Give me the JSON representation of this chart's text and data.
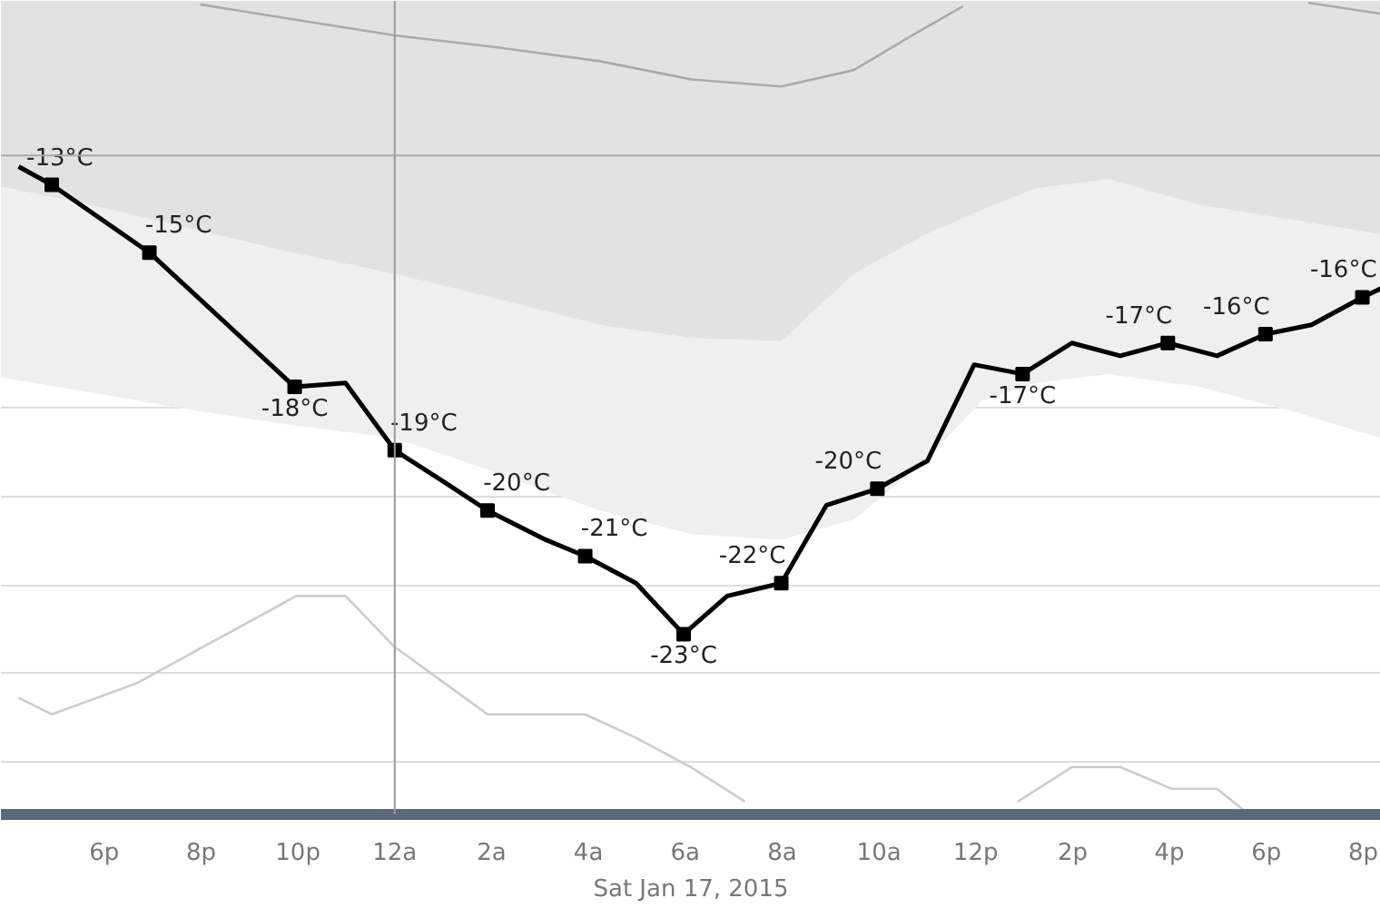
{
  "chart_data": {
    "type": "line",
    "xlabel": "Sat Jan 17, 2015",
    "xlim": [
      "2015-01-16T15:52",
      "2015-01-17T20:22"
    ],
    "ylim": [
      -27.28,
      -8.92
    ],
    "xticks": [
      {
        "value": "2015-01-16T18:00",
        "label": "6p"
      },
      {
        "value": "2015-01-16T20:00",
        "label": "8p"
      },
      {
        "value": "2015-01-16T22:00",
        "label": "10p"
      },
      {
        "value": "2015-01-17T00:00",
        "label": "12a"
      },
      {
        "value": "2015-01-17T02:00",
        "label": "2a"
      },
      {
        "value": "2015-01-17T04:00",
        "label": "4a"
      },
      {
        "value": "2015-01-17T06:00",
        "label": "6a"
      },
      {
        "value": "2015-01-17T08:00",
        "label": "8a"
      },
      {
        "value": "2015-01-17T10:00",
        "label": "10a"
      },
      {
        "value": "2015-01-17T12:00",
        "label": "12p"
      },
      {
        "value": "2015-01-17T14:00",
        "label": "2p"
      },
      {
        "value": "2015-01-17T16:00",
        "label": "4p"
      },
      {
        "value": "2015-01-17T18:00",
        "label": "6p"
      },
      {
        "value": "2015-01-17T20:00",
        "label": "8p"
      }
    ],
    "yticks": [
      {
        "value": -10.1,
        "label": null
      },
      {
        "value": -12.1,
        "label": null
      },
      {
        "value": -14.1,
        "label": null
      },
      {
        "value": -16.1,
        "label": null
      },
      {
        "value": -18.1,
        "label": null
      },
      {
        "value": -20.1,
        "label": null
      },
      {
        "value": -22.1,
        "label": null
      },
      {
        "value": -24.1,
        "label": null
      },
      {
        "value": -26.1,
        "label": null
      }
    ],
    "tick_labels": "x",
    "grid": "y",
    "ref_lines": [
      {
        "axis": "x",
        "value": "2015-01-17T00:00",
        "color": "#999999"
      },
      {
        "axis": "y",
        "value": -12.41,
        "color": "#aaaaaa"
      }
    ],
    "series": [
      {
        "type": "area",
        "color": "#efefef",
        "x": [
          "2015-01-16T15:52",
          "2015-01-16T17:44",
          "2015-01-16T19:37",
          "2015-01-16T21:52",
          "2015-01-17T00:00",
          "2015-01-17T01:59",
          "2015-01-17T04:14",
          "2015-01-17T06:07",
          "2015-01-17T07:59",
          "2015-01-17T09:29",
          "2015-01-17T10:59",
          "2015-01-17T12:07",
          "2015-01-17T13:14",
          "2015-01-17T14:44",
          "2015-01-17T16:37",
          "2015-01-17T18:29",
          "2015-01-17T20:22"
        ],
        "values": [
          -17.42,
          -17.75,
          -18.12,
          -18.49,
          -18.78,
          -19.52,
          -20.42,
          -20.95,
          -21.08,
          -20.62,
          -19.27,
          -17.95,
          -17.54,
          -17.34,
          -17.63,
          -18.16,
          -18.78
        ]
      },
      {
        "type": "area",
        "color": "#e2e2e2",
        "x": [
          "2015-01-16T15:52",
          "2015-01-16T17:44",
          "2015-01-16T19:37",
          "2015-01-16T21:52",
          "2015-01-17T00:00",
          "2015-01-17T01:59",
          "2015-01-17T04:14",
          "2015-01-17T06:07",
          "2015-01-17T07:59",
          "2015-01-17T09:29",
          "2015-01-17T10:59",
          "2015-01-17T12:07",
          "2015-01-17T13:14",
          "2015-01-17T14:44",
          "2015-01-17T16:37",
          "2015-01-17T18:29",
          "2015-01-17T20:22"
        ],
        "values": [
          -13.11,
          -13.52,
          -14.01,
          -14.59,
          -15.08,
          -15.61,
          -16.23,
          -16.52,
          -16.6,
          -15.08,
          -14.18,
          -13.64,
          -13.15,
          -12.94,
          -13.52,
          -13.85,
          -14.18
        ]
      },
      {
        "color": "#aaaaaa",
        "x": [
          "2015-01-16T19:59",
          "2015-01-16T21:52",
          "2015-01-17T00:00",
          "2015-01-17T01:59",
          "2015-01-17T04:14",
          "2015-01-17T06:07",
          "2015-01-17T07:59",
          "2015-01-17T09:29",
          "2015-01-17T10:37",
          "2015-01-17T11:44",
          "2015-01-17T16:00",
          "2015-01-17T18:52",
          "2015-01-17T20:22"
        ],
        "values": [
          -9.0,
          -9.33,
          -9.7,
          -9.95,
          -10.28,
          -10.69,
          -10.85,
          -10.48,
          -9.74,
          -9.04,
          null,
          -8.96,
          -9.21
        ]
      },
      {
        "color": "#cccccc",
        "x": [
          "2015-01-16T16:14",
          "2015-01-16T16:55",
          "2015-01-16T18:40",
          "2015-01-16T21:58",
          "2015-01-16T22:59",
          "2015-01-17T00:00",
          "2015-01-17T01:55",
          "2015-01-17T03:56",
          "2015-01-17T04:59",
          "2015-01-17T06:07",
          "2015-01-17T07:14",
          "2015-01-17T11:00",
          "2015-01-17T12:52",
          "2015-01-17T13:59",
          "2015-01-17T14:59",
          "2015-01-17T16:03",
          "2015-01-17T16:59",
          "2015-01-17T17:33"
        ],
        "values": [
          -24.65,
          -25.02,
          -24.32,
          -22.35,
          -22.35,
          -23.5,
          -25.02,
          -25.02,
          -25.55,
          -26.21,
          -26.99,
          null,
          -26.99,
          -26.21,
          -26.21,
          -26.7,
          -26.7,
          -27.2
        ]
      },
      {
        "color": "#000000",
        "x": [
          "2015-01-16T16:14",
          "2015-01-16T16:55",
          "2015-01-16T18:56",
          "2015-01-16T21:56",
          "2015-01-16T22:59",
          "2015-01-17T00:00",
          "2015-01-17T01:03",
          "2015-01-17T01:55",
          "2015-01-17T03:07",
          "2015-01-17T03:56",
          "2015-01-17T04:59",
          "2015-01-17T05:58",
          "2015-01-17T06:52",
          "2015-01-17T07:59",
          "2015-01-17T08:55",
          "2015-01-17T09:58",
          "2015-01-17T11:00",
          "2015-01-17T11:58",
          "2015-01-17T12:58",
          "2015-01-17T13:59",
          "2015-01-17T14:59",
          "2015-01-17T15:58",
          "2015-01-17T16:59",
          "2015-01-17T17:59",
          "2015-01-17T18:56",
          "2015-01-17T19:59",
          "2015-01-17T20:22"
        ],
        "values": [
          -12.66,
          -13.07,
          -14.6,
          -17.63,
          -17.54,
          -19.06,
          -19.8,
          -20.42,
          -21.08,
          -21.45,
          -22.06,
          -23.21,
          -22.35,
          -22.06,
          -20.3,
          -19.93,
          -19.3,
          -17.13,
          -17.34,
          -16.64,
          -16.93,
          -16.64,
          -16.93,
          -16.44,
          -16.23,
          -15.61,
          -15.41
        ],
        "value_labels": [
          null,
          "-13°C",
          "-15°C",
          "-18°C",
          null,
          "-19°C",
          null,
          "-20°C",
          null,
          "-21°C",
          null,
          "-23°C",
          null,
          "-22°C",
          null,
          "-20°C",
          null,
          null,
          "-17°C",
          null,
          null,
          "-17°C",
          null,
          "-16°C",
          null,
          "-16°C",
          null
        ]
      }
    ]
  }
}
